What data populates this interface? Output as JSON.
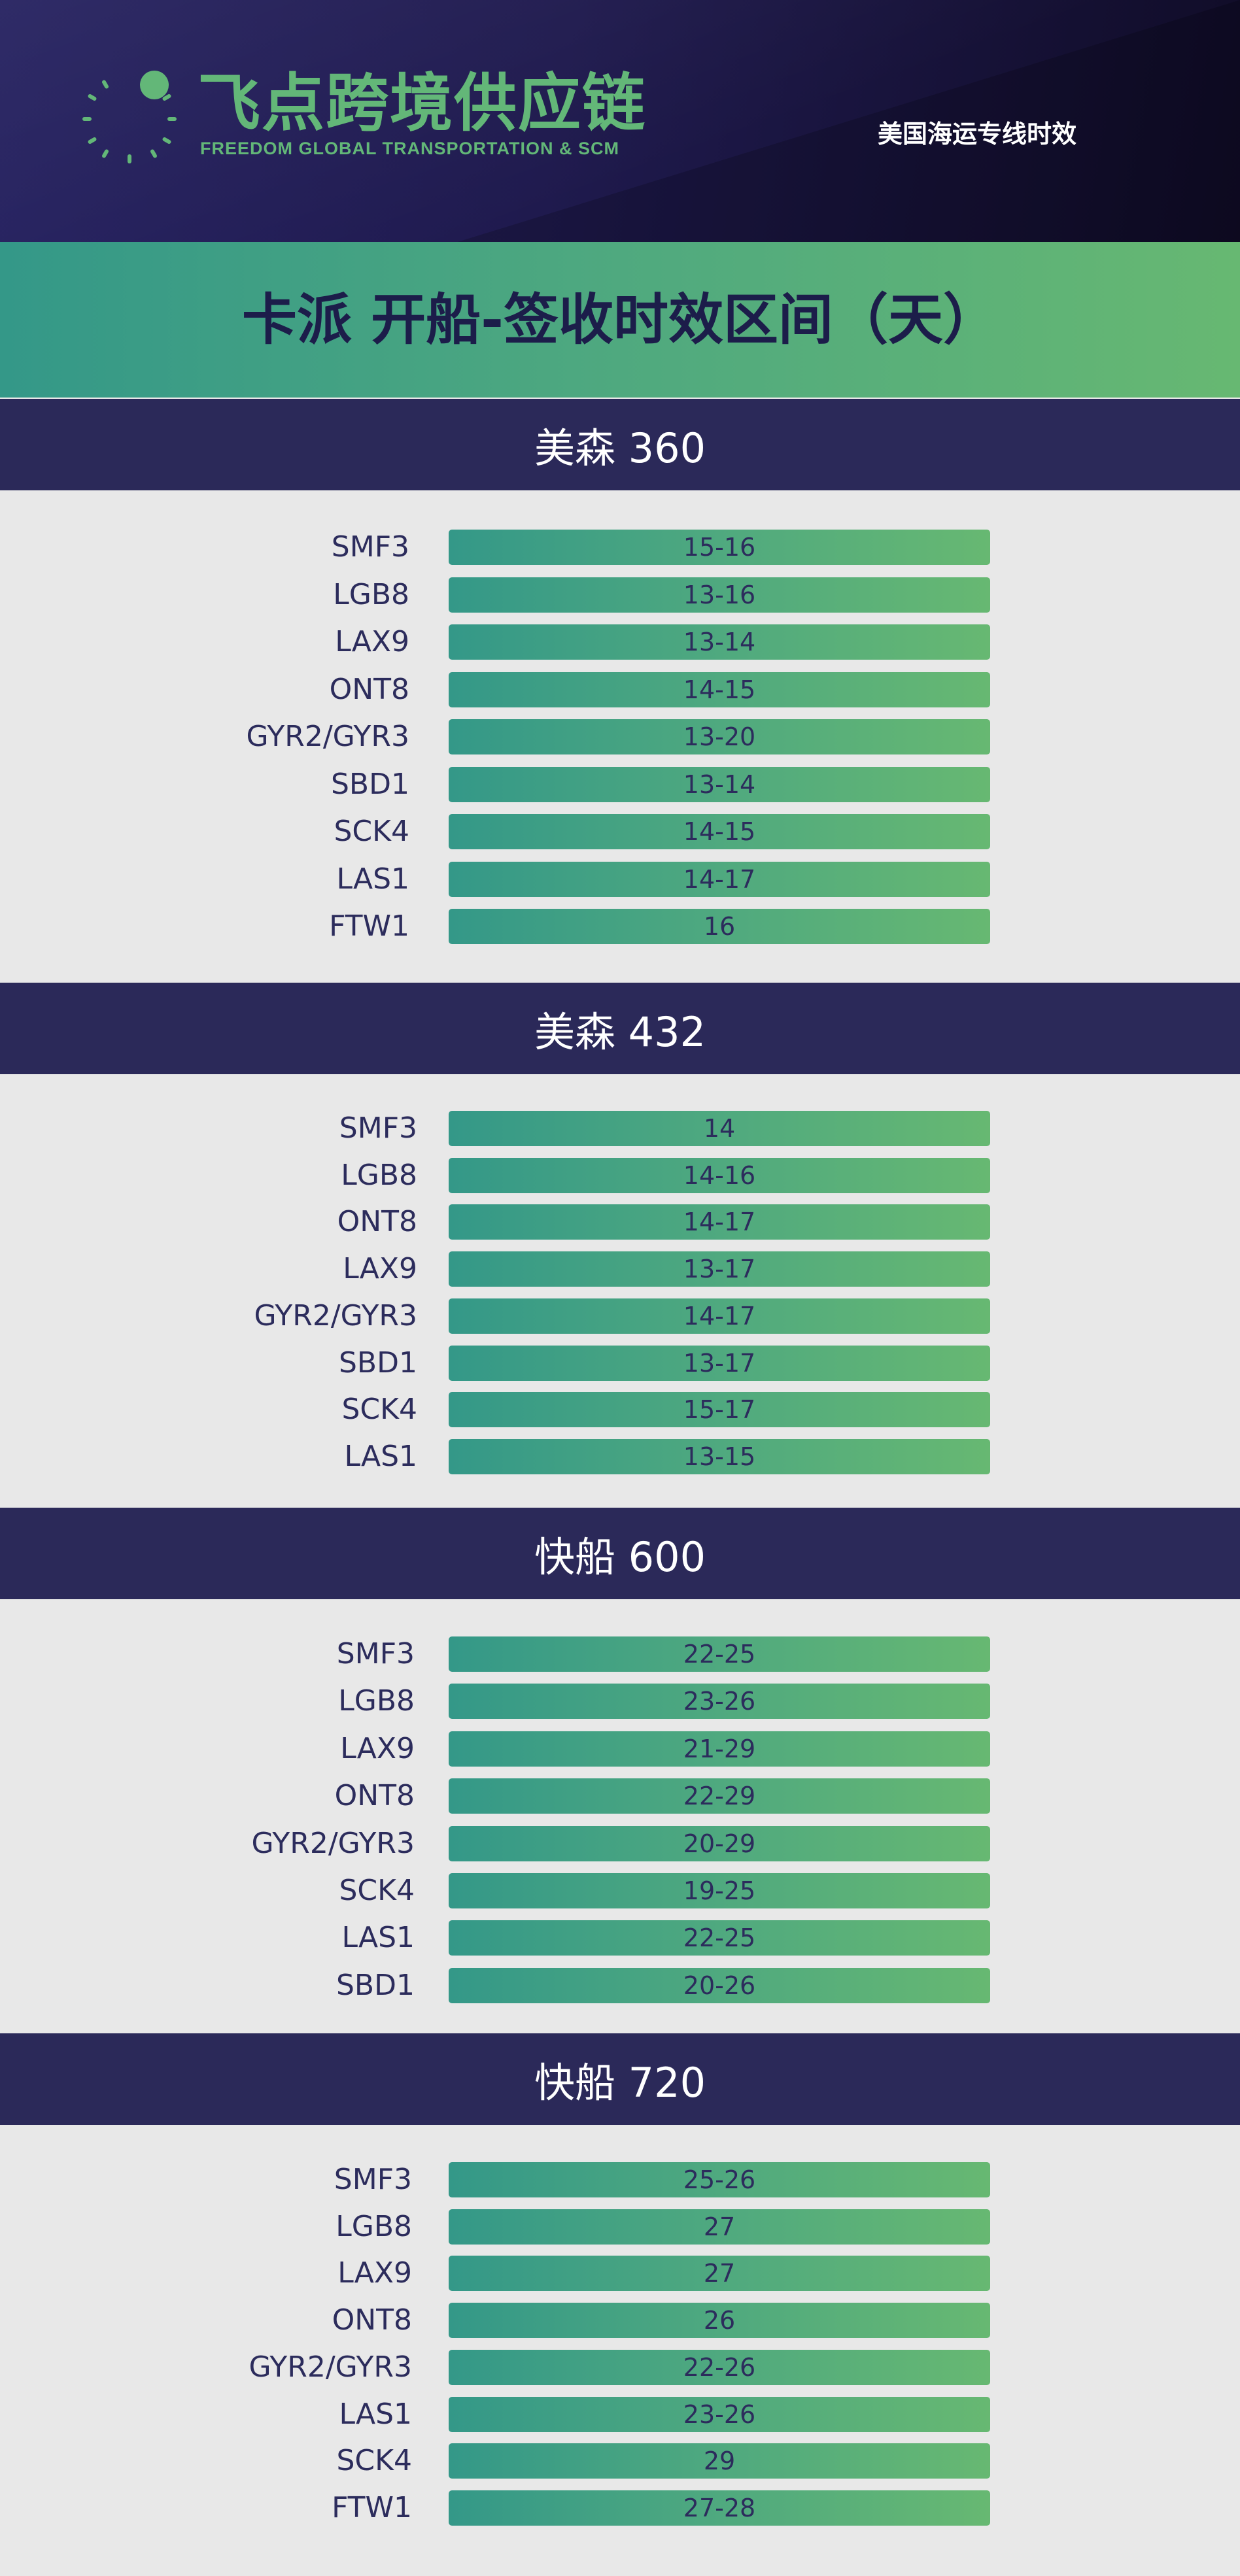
{
  "brand": {
    "name_cn": "飞点跨境供应链",
    "name_en": "FREEDOM GLOBAL TRANSPORTATION & SCM",
    "accent_color": "#63b778",
    "logo_icon": "dotted-ring-logo-icon"
  },
  "header": {
    "tagline": "美国海运专线时效"
  },
  "title": "卡派 开船-签收时效区间（天）",
  "sections": [
    {
      "name": "美森 360",
      "rows": [
        {
          "warehouse": "SMF3",
          "days": "15-16"
        },
        {
          "warehouse": "LGB8",
          "days": "13-16"
        },
        {
          "warehouse": "LAX9",
          "days": "13-14"
        },
        {
          "warehouse": "ONT8",
          "days": "14-15"
        },
        {
          "warehouse": "GYR2/GYR3",
          "days": "13-20"
        },
        {
          "warehouse": "SBD1",
          "days": "13-14"
        },
        {
          "warehouse": "SCK4",
          "days": "14-15"
        },
        {
          "warehouse": "LAS1",
          "days": "14-17"
        },
        {
          "warehouse": "FTW1",
          "days": "16"
        }
      ]
    },
    {
      "name": "美森 432",
      "rows": [
        {
          "warehouse": "SMF3",
          "days": "14"
        },
        {
          "warehouse": "LGB8",
          "days": "14-16"
        },
        {
          "warehouse": "ONT8",
          "days": "14-17"
        },
        {
          "warehouse": "LAX9",
          "days": "13-17"
        },
        {
          "warehouse": "GYR2/GYR3",
          "days": "14-17"
        },
        {
          "warehouse": "SBD1",
          "days": "13-17"
        },
        {
          "warehouse": "SCK4",
          "days": "15-17"
        },
        {
          "warehouse": "LAS1",
          "days": "13-15"
        }
      ]
    },
    {
      "name": "快船 600",
      "rows": [
        {
          "warehouse": "SMF3",
          "days": "22-25"
        },
        {
          "warehouse": "LGB8",
          "days": "23-26"
        },
        {
          "warehouse": "LAX9",
          "days": "21-29"
        },
        {
          "warehouse": "ONT8",
          "days": "22-29"
        },
        {
          "warehouse": "GYR2/GYR3",
          "days": "20-29"
        },
        {
          "warehouse": "SCK4",
          "days": "19-25"
        },
        {
          "warehouse": "LAS1",
          "days": "22-25"
        },
        {
          "warehouse": "SBD1",
          "days": "20-26"
        }
      ]
    },
    {
      "name": "快船 720",
      "rows": [
        {
          "warehouse": "SMF3",
          "days": "25-26"
        },
        {
          "warehouse": "LGB8",
          "days": "27"
        },
        {
          "warehouse": "LAX9",
          "days": "27"
        },
        {
          "warehouse": "ONT8",
          "days": "26"
        },
        {
          "warehouse": "GYR2/GYR3",
          "days": "22-26"
        },
        {
          "warehouse": "LAS1",
          "days": "23-26"
        },
        {
          "warehouse": "SCK4",
          "days": "29"
        },
        {
          "warehouse": "FTW1",
          "days": "27-28"
        }
      ]
    }
  ]
}
